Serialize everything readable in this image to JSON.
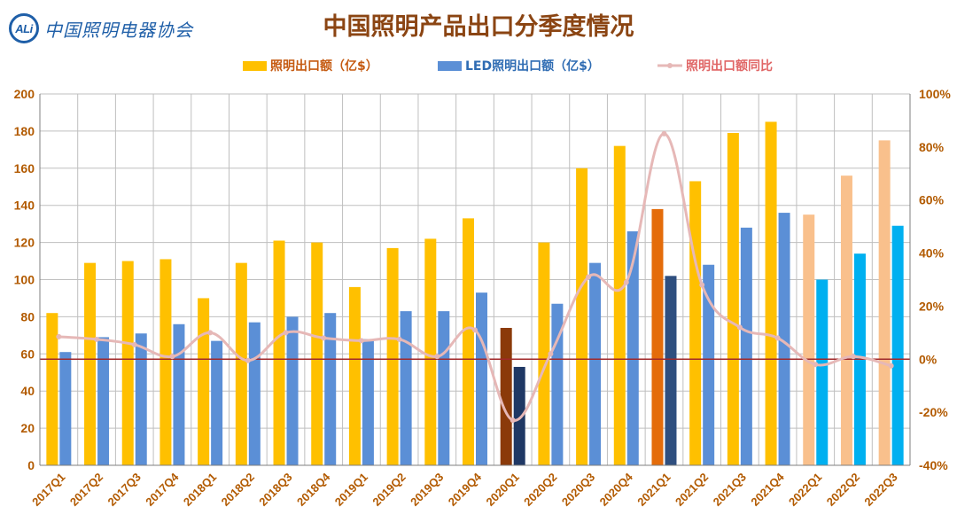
{
  "header": {
    "logo_mark": "ALi",
    "logo_text": "中国照明电器协会"
  },
  "chart_data": {
    "type": "bar",
    "title": "中国照明产品出口分季度情况",
    "categories": [
      "2017Q1",
      "2017Q2",
      "2017Q3",
      "2017Q4",
      "2018Q1",
      "2018Q2",
      "2018Q3",
      "2018Q4",
      "2019Q1",
      "2019Q2",
      "2019Q3",
      "2019Q4",
      "2020Q1",
      "2020Q2",
      "2020Q3",
      "2020Q4",
      "2021Q1",
      "2021Q2",
      "2021Q3",
      "2021Q4",
      "2022Q1",
      "2022Q2",
      "2022Q3"
    ],
    "series": [
      {
        "name": "照明出口额（亿$）",
        "axis": "left",
        "kind": "bar",
        "color": "#ffc000",
        "values": [
          82,
          109,
          110,
          111,
          90,
          109,
          121,
          120,
          96,
          117,
          122,
          133,
          74,
          120,
          160,
          172,
          138,
          153,
          179,
          185,
          135,
          156,
          175
        ],
        "highlight_colors": {
          "12": "#8b3a0a",
          "16": "#e46c0a",
          "20": "#f9c08c",
          "21": "#f9c08c",
          "22": "#f9c08c"
        }
      },
      {
        "name": "LED照明出口额（亿$）",
        "axis": "left",
        "kind": "bar",
        "color": "#5b8fd6",
        "values": [
          61,
          69,
          71,
          76,
          67,
          77,
          80,
          82,
          68,
          83,
          83,
          93,
          53,
          87,
          109,
          126,
          102,
          108,
          128,
          136,
          100,
          114,
          129
        ],
        "highlight_colors": {
          "12": "#1f3864",
          "16": "#2f4f7f",
          "20": "#00b0f0",
          "21": "#00b0f0",
          "22": "#00b0f0"
        }
      },
      {
        "name": "照明出口额同比",
        "axis": "right",
        "kind": "line",
        "color": "#e6b8b7",
        "values": [
          8.5,
          7.5,
          5.5,
          1,
          10,
          -0.5,
          10,
          8,
          7,
          7.5,
          1,
          11,
          -23,
          2,
          31,
          29,
          85,
          28,
          12,
          8,
          -2,
          1,
          -2.5
        ]
      }
    ],
    "left_axis": {
      "min": 0,
      "max": 200,
      "step": 20,
      "ticks": [
        "0",
        "20",
        "40",
        "60",
        "80",
        "100",
        "120",
        "140",
        "160",
        "180",
        "200"
      ]
    },
    "right_axis": {
      "min": -40,
      "max": 100,
      "step": 20,
      "ticks": [
        "-40%",
        "-20%",
        "0%",
        "20%",
        "40%",
        "60%",
        "80%",
        "100%"
      ]
    },
    "zero_line_color": "#a0282a",
    "grid": true,
    "legend_position": "top"
  }
}
